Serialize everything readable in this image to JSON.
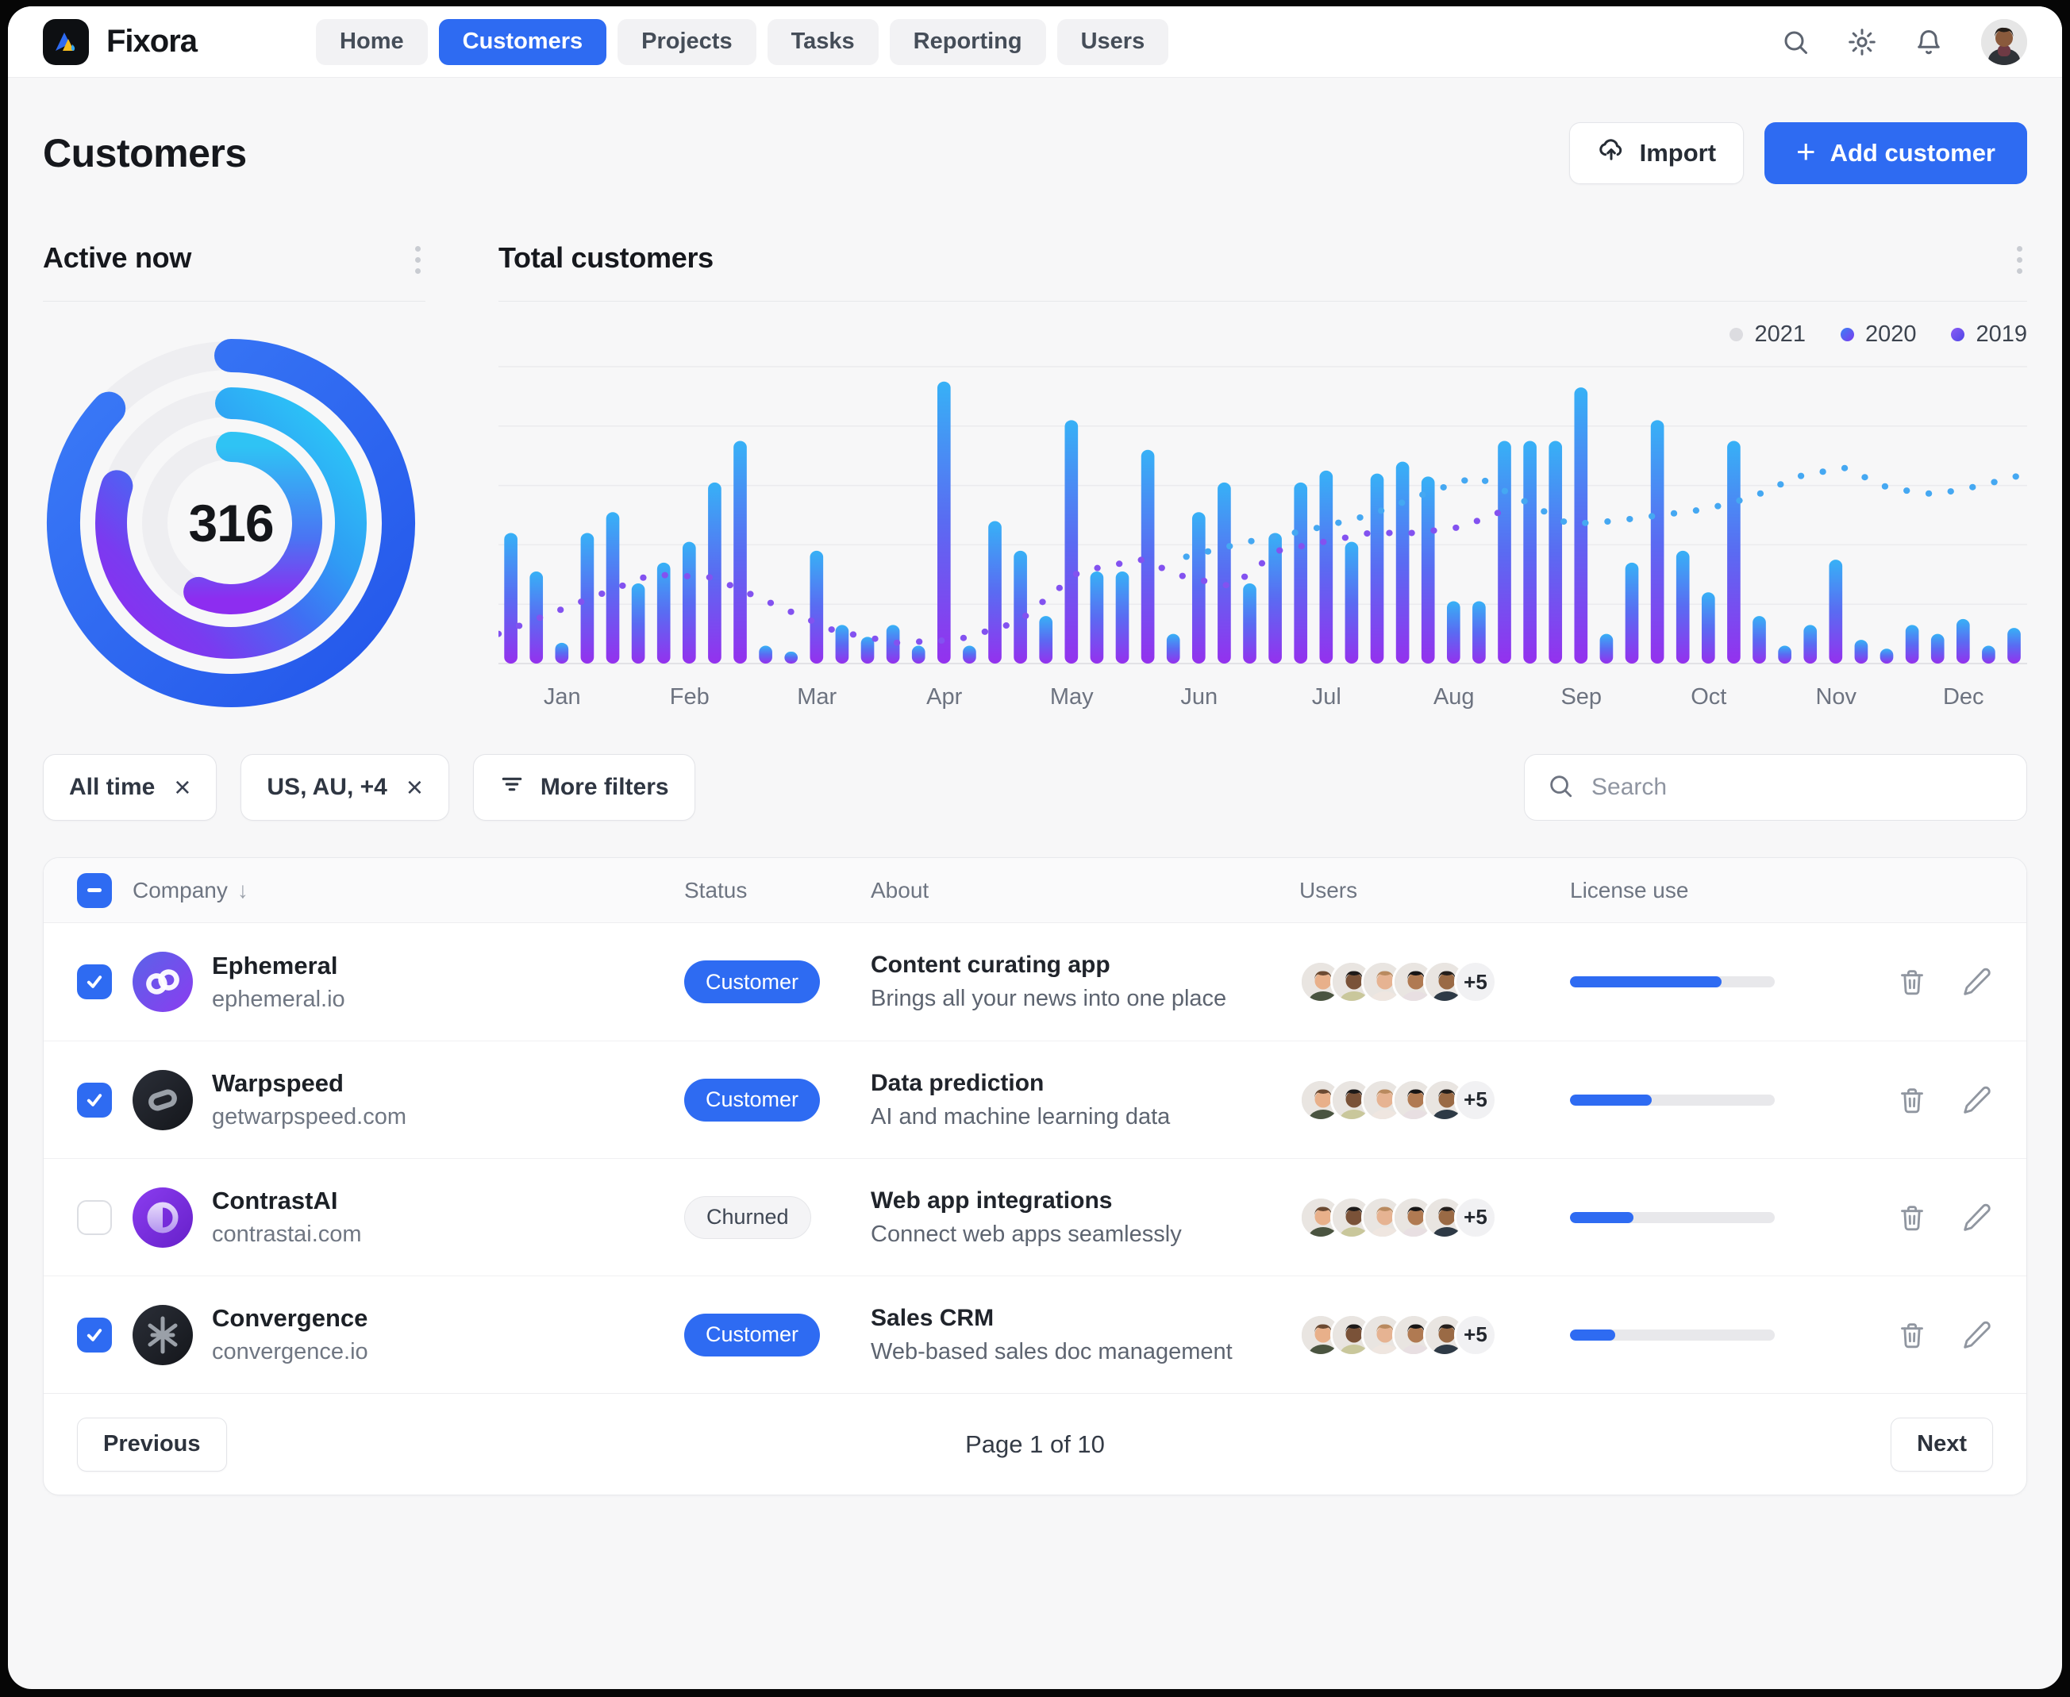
{
  "brand": {
    "name": "Fixora"
  },
  "nav": {
    "items": [
      {
        "label": "Home",
        "active": false
      },
      {
        "label": "Customers",
        "active": true
      },
      {
        "label": "Projects",
        "active": false
      },
      {
        "label": "Tasks",
        "active": false
      },
      {
        "label": "Reporting",
        "active": false
      },
      {
        "label": "Users",
        "active": false
      }
    ]
  },
  "topbar_icons": [
    "search-icon",
    "settings-icon",
    "notifications-icon",
    "avatar"
  ],
  "page": {
    "title": "Customers",
    "import_label": "Import",
    "add_customer_label": "Add customer"
  },
  "active_now": {
    "title": "Active now",
    "center_value": "316",
    "rings": [
      {
        "name": "outer",
        "percent": 87,
        "style": "blue"
      },
      {
        "name": "middle",
        "percent": 80,
        "style": "cyan-purple"
      },
      {
        "name": "inner",
        "percent": 57,
        "style": "cyan-purple-vertical"
      }
    ]
  },
  "chart_data": {
    "type": "bar",
    "title": "Total customers",
    "legend": [
      {
        "label": "2021",
        "dot": "#dcdce0"
      },
      {
        "label": "2020",
        "dot": "linear-gradient(135deg,#3b82f6,#7c3aed)"
      },
      {
        "label": "2019",
        "dot": "linear-gradient(135deg,#8b5cf6,#4f46e5)"
      }
    ],
    "categories": [
      "Jan",
      "Feb",
      "Mar",
      "Apr",
      "May",
      "Jun",
      "Jul",
      "Aug",
      "Sep",
      "Oct",
      "Nov",
      "Dec"
    ],
    "bar_values_pct": [
      44,
      31,
      7,
      44,
      51,
      27,
      34,
      41,
      61,
      75,
      6,
      4,
      38,
      13,
      9,
      13,
      6,
      95,
      6,
      48,
      38,
      16,
      82,
      31,
      31,
      72,
      10,
      51,
      61,
      27,
      44,
      61,
      65,
      41,
      64,
      68,
      63,
      21,
      21,
      75,
      75,
      75,
      93,
      10,
      34,
      82,
      38,
      24,
      75,
      16,
      6,
      13,
      35,
      8,
      5,
      13,
      10,
      15,
      6,
      12
    ],
    "line_2019_pts": [
      [
        0,
        10
      ],
      [
        5,
        20
      ],
      [
        10,
        30
      ],
      [
        14,
        29
      ],
      [
        18,
        20
      ],
      [
        22,
        11
      ],
      [
        26,
        7
      ],
      [
        30,
        8
      ],
      [
        34,
        14
      ],
      [
        38,
        31
      ],
      [
        42,
        35
      ],
      [
        45,
        29
      ],
      [
        48,
        26
      ],
      [
        51,
        38
      ],
      [
        54,
        41
      ],
      [
        57,
        44
      ],
      [
        60,
        44
      ],
      [
        63,
        46
      ],
      [
        66,
        52
      ]
    ],
    "line_2020_pts": [
      [
        45,
        36
      ],
      [
        49,
        41
      ],
      [
        53,
        45
      ],
      [
        57,
        50
      ],
      [
        61,
        58
      ],
      [
        64,
        63
      ],
      [
        67,
        55
      ],
      [
        70,
        47
      ],
      [
        73,
        48
      ],
      [
        76,
        50
      ],
      [
        79,
        52
      ],
      [
        82,
        56
      ],
      [
        85,
        63
      ],
      [
        88,
        66
      ],
      [
        91,
        59
      ],
      [
        94,
        57
      ],
      [
        97,
        60
      ],
      [
        100,
        64
      ]
    ],
    "ylim": [
      0,
      100
    ],
    "grid": true,
    "legend_position": "top-right"
  },
  "filters": {
    "chips": [
      {
        "label": "All time",
        "closable": true
      },
      {
        "label": "US, AU, +4",
        "closable": true
      }
    ],
    "more_filters_label": "More filters",
    "search_placeholder": "Search"
  },
  "table": {
    "columns": [
      "Company",
      "Status",
      "About",
      "Users",
      "License use"
    ],
    "sort_column": "Company",
    "header_checkbox": "indeterminate",
    "rows": [
      {
        "company": "Ephemeral",
        "domain": "ephemeral.io",
        "status": "Customer",
        "status_type": "customer",
        "about_title": "Content curating app",
        "about_sub": "Brings all your news into one place",
        "extra_users": "+5",
        "license_percent": 74,
        "checked": true,
        "logo": "ephemeral"
      },
      {
        "company": "Warpspeed",
        "domain": "getwarpspeed.com",
        "status": "Customer",
        "status_type": "customer",
        "about_title": "Data prediction",
        "about_sub": "AI and machine learning data",
        "extra_users": "+5",
        "license_percent": 40,
        "checked": true,
        "logo": "warpspeed"
      },
      {
        "company": "ContrastAI",
        "domain": "contrastai.com",
        "status": "Churned",
        "status_type": "churned",
        "about_title": "Web app integrations",
        "about_sub": "Connect web apps seamlessly",
        "extra_users": "+5",
        "license_percent": 31,
        "checked": false,
        "logo": "contrastai"
      },
      {
        "company": "Convergence",
        "domain": "convergence.io",
        "status": "Customer",
        "status_type": "customer",
        "about_title": "Sales CRM",
        "about_sub": "Web-based sales doc management",
        "extra_users": "+5",
        "license_percent": 22,
        "checked": true,
        "logo": "convergence"
      }
    ],
    "pagination": {
      "previous": "Previous",
      "info": "Page 1 of 10",
      "next": "Next"
    }
  },
  "colors": {
    "accent": "#2e6bf2",
    "bar_top": "#37b1f6",
    "bar_mid": "#5a6bf2",
    "bar_bottom": "#9431ee",
    "line_2019": "#8352f0",
    "line_2020": "#45a8f2",
    "track": "#eeeef1"
  }
}
